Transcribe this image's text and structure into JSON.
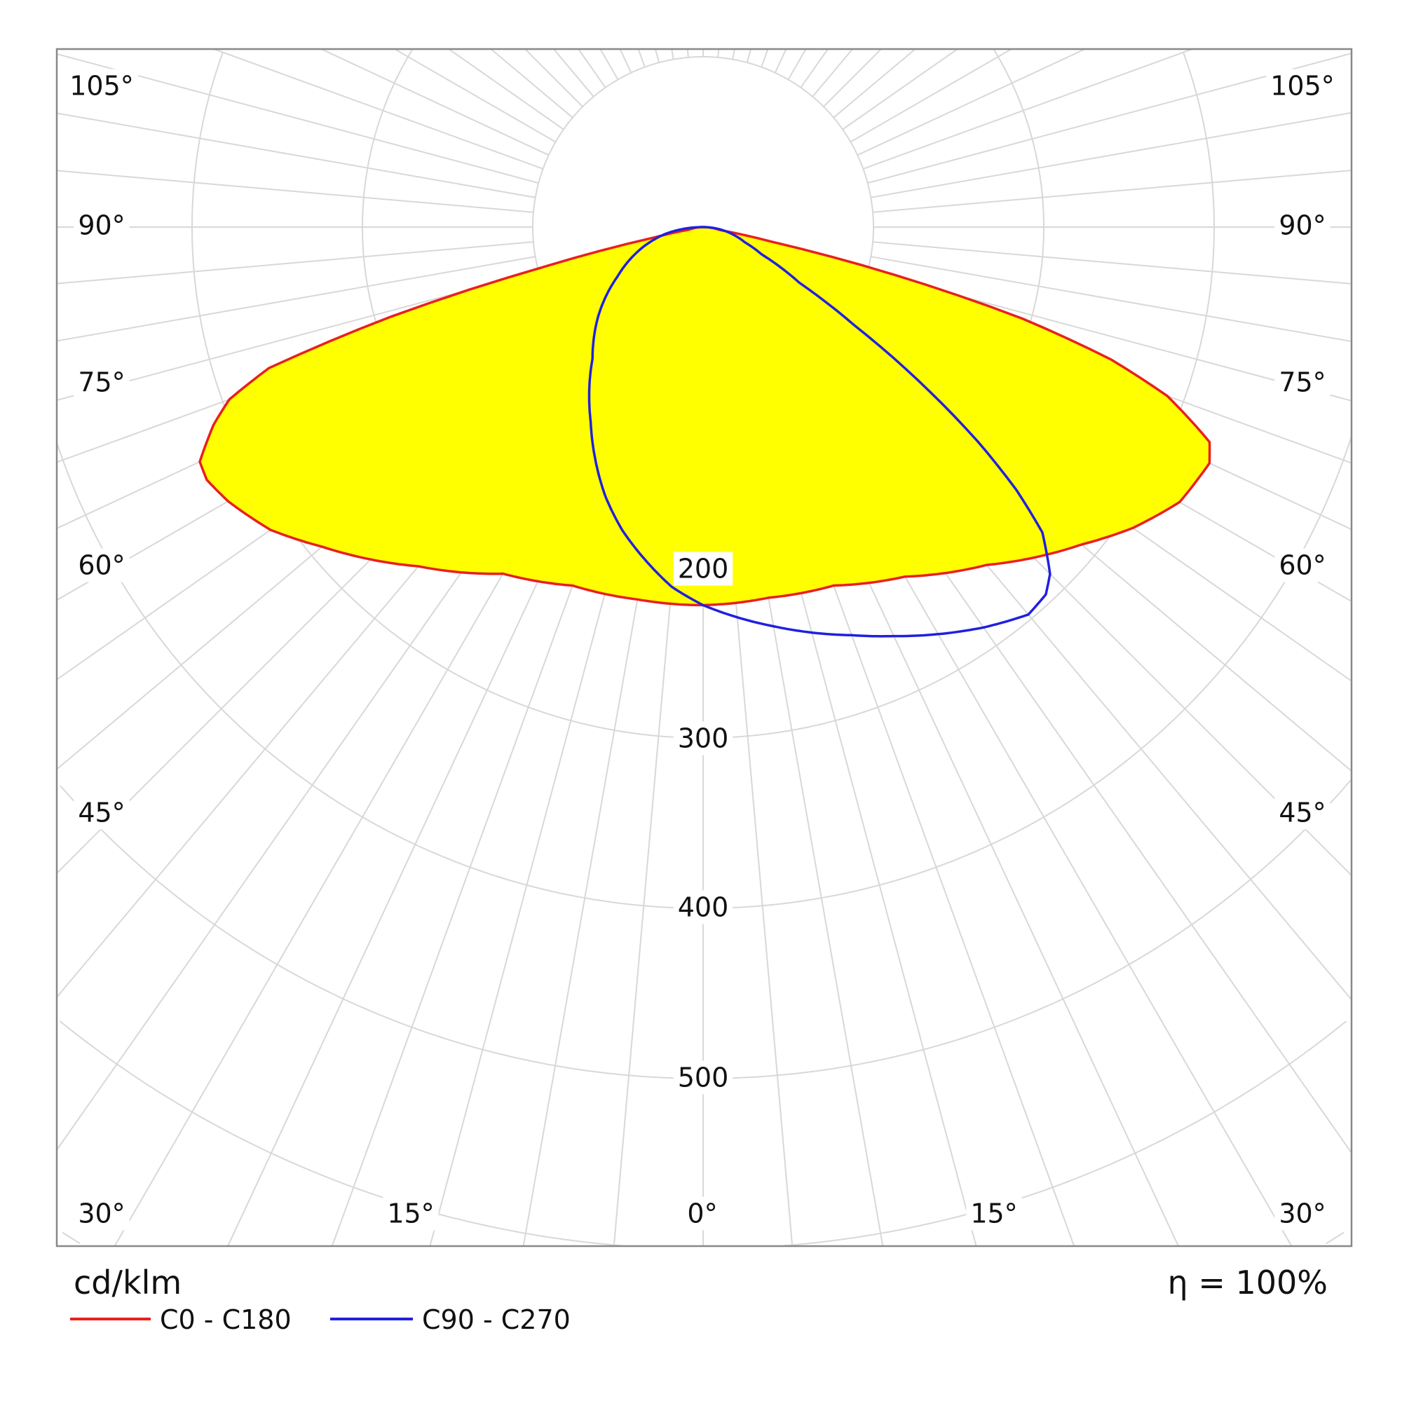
{
  "chart_data": {
    "type": "polar",
    "unit_label": "cd/klm",
    "efficiency_label": "η = 100%",
    "radial_ticks": [
      100,
      200,
      300,
      400,
      500,
      600,
      700,
      800
    ],
    "radial_tick_labels": [
      "200",
      "300",
      "400",
      "500"
    ],
    "angle_labels_sides": [
      "105°",
      "90°",
      "75°",
      "60°",
      "45°",
      "30°"
    ],
    "angle_labels_bottom": [
      "30°",
      "15°",
      "0°",
      "15°",
      "30°"
    ],
    "grid": true,
    "colors": {
      "fill": "#ffff00",
      "c0_c180": "#e8201e",
      "c90_c270": "#2020e0",
      "grid": "#d8d8d8",
      "frame": "#888888"
    },
    "series": [
      {
        "name": "C0 - C180",
        "color": "#e8201e",
        "filled": true,
        "right_half_C0": {
          "gamma": [
            0,
            10,
            20,
            30,
            40,
            50,
            55,
            60,
            65,
            67,
            70,
            72,
            74,
            76,
            78,
            80,
            90
          ],
          "value": [
            222,
            221,
            224,
            237,
            259,
            290,
            308,
            323,
            328,
            323,
            290,
            252,
            195,
            115,
            40,
            10,
            0
          ]
        },
        "left_half_C180": {
          "gamma": [
            0,
            10,
            20,
            30,
            40,
            50,
            55,
            60,
            63,
            65,
            68,
            70,
            72,
            74,
            76,
            78,
            80,
            90
          ],
          "value": [
            222,
            222,
            224,
            235,
            260,
            292,
            310,
            322,
            327,
            326,
            310,
            296,
            268,
            190,
            95,
            30,
            8,
            0
          ]
        }
      },
      {
        "name": "C90 - C270",
        "color": "#2020e0",
        "filled": false,
        "right_half_C90": {
          "gamma": [
            0,
            10,
            20,
            25,
            30,
            35,
            40,
            43,
            45,
            48,
            50,
            52,
            54,
            57,
            60,
            65,
            70,
            80,
            90
          ],
          "value": [
            222,
            238,
            255,
            265,
            276,
            287,
            297,
            295,
            288,
            268,
            240,
            205,
            165,
            106,
            65,
            38,
            26,
            13,
            0
          ]
        },
        "left_half_C270": {
          "gamma": [
            0,
            5,
            10,
            15,
            20,
            30,
            40,
            50,
            60,
            70,
            80,
            90
          ],
          "value": [
            222,
            212,
            198,
            184,
            168,
            132,
            101,
            80,
            58,
            40,
            22,
            0
          ]
        }
      }
    ]
  }
}
